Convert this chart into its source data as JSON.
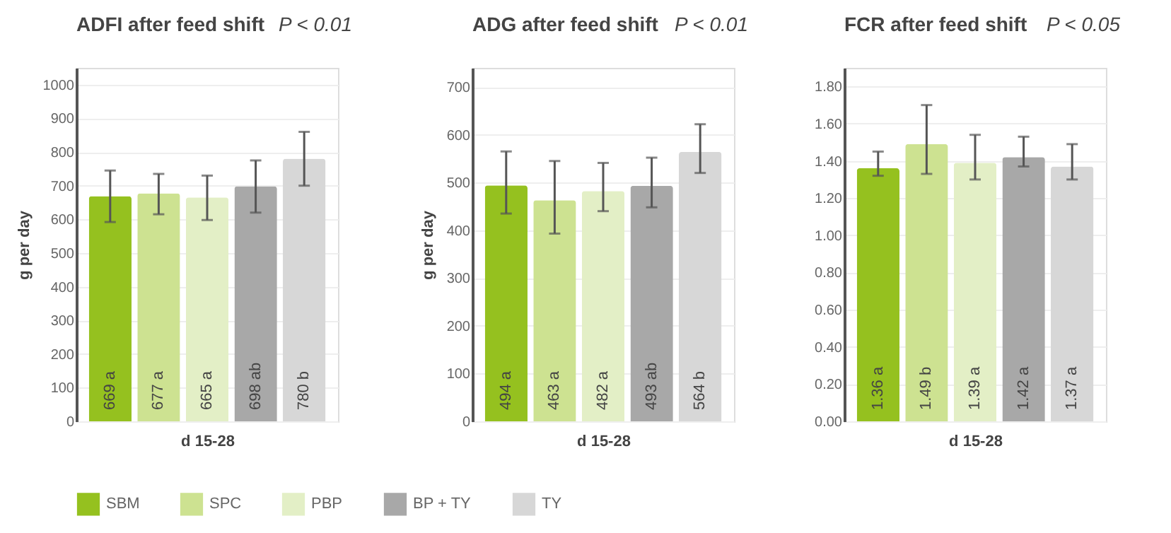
{
  "chart_data": [
    {
      "type": "bar",
      "title": "ADFI after feed shift",
      "subtitle": "P < 0.01",
      "xlabel": "d 15-28",
      "ylabel": "g per day",
      "categories": [
        null
      ],
      "ylim": [
        0,
        1050
      ],
      "yticks": [
        0,
        100,
        200,
        300,
        400,
        500,
        600,
        700,
        800,
        900,
        1000
      ],
      "grid": "y",
      "tick_labels": "y",
      "legend": "bottom",
      "series": [
        {
          "name": "SBM",
          "color": "#95c11f",
          "values": [
            669
          ],
          "errors": [
            [
              592,
              745
            ]
          ],
          "value_labels": [
            "669 a"
          ]
        },
        {
          "name": "SPC",
          "color": "#cde291",
          "values": [
            677
          ],
          "errors": [
            [
              615,
              735
            ]
          ],
          "value_labels": [
            "677 a"
          ]
        },
        {
          "name": "PBP",
          "color": "#e3efc6",
          "values": [
            665
          ],
          "errors": [
            [
              598,
              730
            ]
          ],
          "value_labels": [
            "665 a"
          ]
        },
        {
          "name": "BP + TY",
          "color": "#a8a8a8",
          "values": [
            698
          ],
          "errors": [
            [
              620,
              775
            ]
          ],
          "value_labels": [
            "698 ab"
          ]
        },
        {
          "name": "TY",
          "color": "#d7d7d7",
          "values": [
            780
          ],
          "errors": [
            [
              700,
              860
            ]
          ],
          "value_labels": [
            "780 b"
          ]
        }
      ]
    },
    {
      "type": "bar",
      "title": "ADG after feed shift",
      "subtitle": "P < 0.01",
      "xlabel": "d 15-28",
      "ylabel": "g per day",
      "categories": [
        null
      ],
      "ylim": [
        0,
        740
      ],
      "yticks": [
        0,
        100,
        200,
        300,
        400,
        500,
        600,
        700
      ],
      "grid": "y",
      "tick_labels": "y",
      "legend": "bottom",
      "series": [
        {
          "name": "SBM",
          "color": "#95c11f",
          "values": [
            494
          ],
          "errors": [
            [
              435,
              565
            ]
          ],
          "value_labels": [
            "494 a"
          ]
        },
        {
          "name": "SPC",
          "color": "#cde291",
          "values": [
            463
          ],
          "errors": [
            [
              393,
              545
            ]
          ],
          "value_labels": [
            "463 a"
          ]
        },
        {
          "name": "PBP",
          "color": "#e3efc6",
          "values": [
            482
          ],
          "errors": [
            [
              440,
              541
            ]
          ],
          "value_labels": [
            "482 a"
          ]
        },
        {
          "name": "BP + TY",
          "color": "#a8a8a8",
          "values": [
            493
          ],
          "errors": [
            [
              448,
              552
            ]
          ],
          "value_labels": [
            "493 ab"
          ]
        },
        {
          "name": "TY",
          "color": "#d7d7d7",
          "values": [
            564
          ],
          "errors": [
            [
              520,
              622
            ]
          ],
          "value_labels": [
            "564 b"
          ]
        }
      ]
    },
    {
      "type": "bar",
      "title": "FCR after feed shift",
      "subtitle": "P < 0.05",
      "xlabel": "d 15-28",
      "categories": [
        null
      ],
      "ylim": [
        0,
        1.9
      ],
      "yticks": [
        {
          "value": 0,
          "label": "0.00"
        },
        {
          "value": 0.2,
          "label": "0.20"
        },
        {
          "value": 0.4,
          "label": "0.40"
        },
        {
          "value": 0.6,
          "label": "0.60"
        },
        {
          "value": 0.8,
          "label": "0.80"
        },
        {
          "value": 1.0,
          "label": "1.00"
        },
        {
          "value": 1.2,
          "label": "1.20"
        },
        {
          "value": 1.4,
          "label": "1.40"
        },
        {
          "value": 1.6,
          "label": "1.60"
        },
        {
          "value": 1.8,
          "label": "1.80"
        }
      ],
      "grid": "y",
      "tick_labels": "y",
      "legend": "bottom",
      "series": [
        {
          "name": "SBM",
          "color": "#95c11f",
          "values": [
            1.36
          ],
          "errors": [
            [
              1.32,
              1.45
            ]
          ],
          "value_labels": [
            "1.36 a"
          ]
        },
        {
          "name": "SPC",
          "color": "#cde291",
          "values": [
            1.49
          ],
          "errors": [
            [
              1.33,
              1.7
            ]
          ],
          "value_labels": [
            "1.49 b"
          ]
        },
        {
          "name": "PBP",
          "color": "#e3efc6",
          "values": [
            1.39
          ],
          "errors": [
            [
              1.3,
              1.54
            ]
          ],
          "value_labels": [
            "1.39 a"
          ]
        },
        {
          "name": "BP + TY",
          "color": "#a8a8a8",
          "values": [
            1.42
          ],
          "errors": [
            [
              1.37,
              1.53
            ]
          ],
          "value_labels": [
            "1.42 a"
          ]
        },
        {
          "name": "TY",
          "color": "#d7d7d7",
          "values": [
            1.37
          ],
          "errors": [
            [
              1.3,
              1.49
            ]
          ],
          "value_labels": [
            "1.37 a"
          ]
        }
      ]
    }
  ]
}
